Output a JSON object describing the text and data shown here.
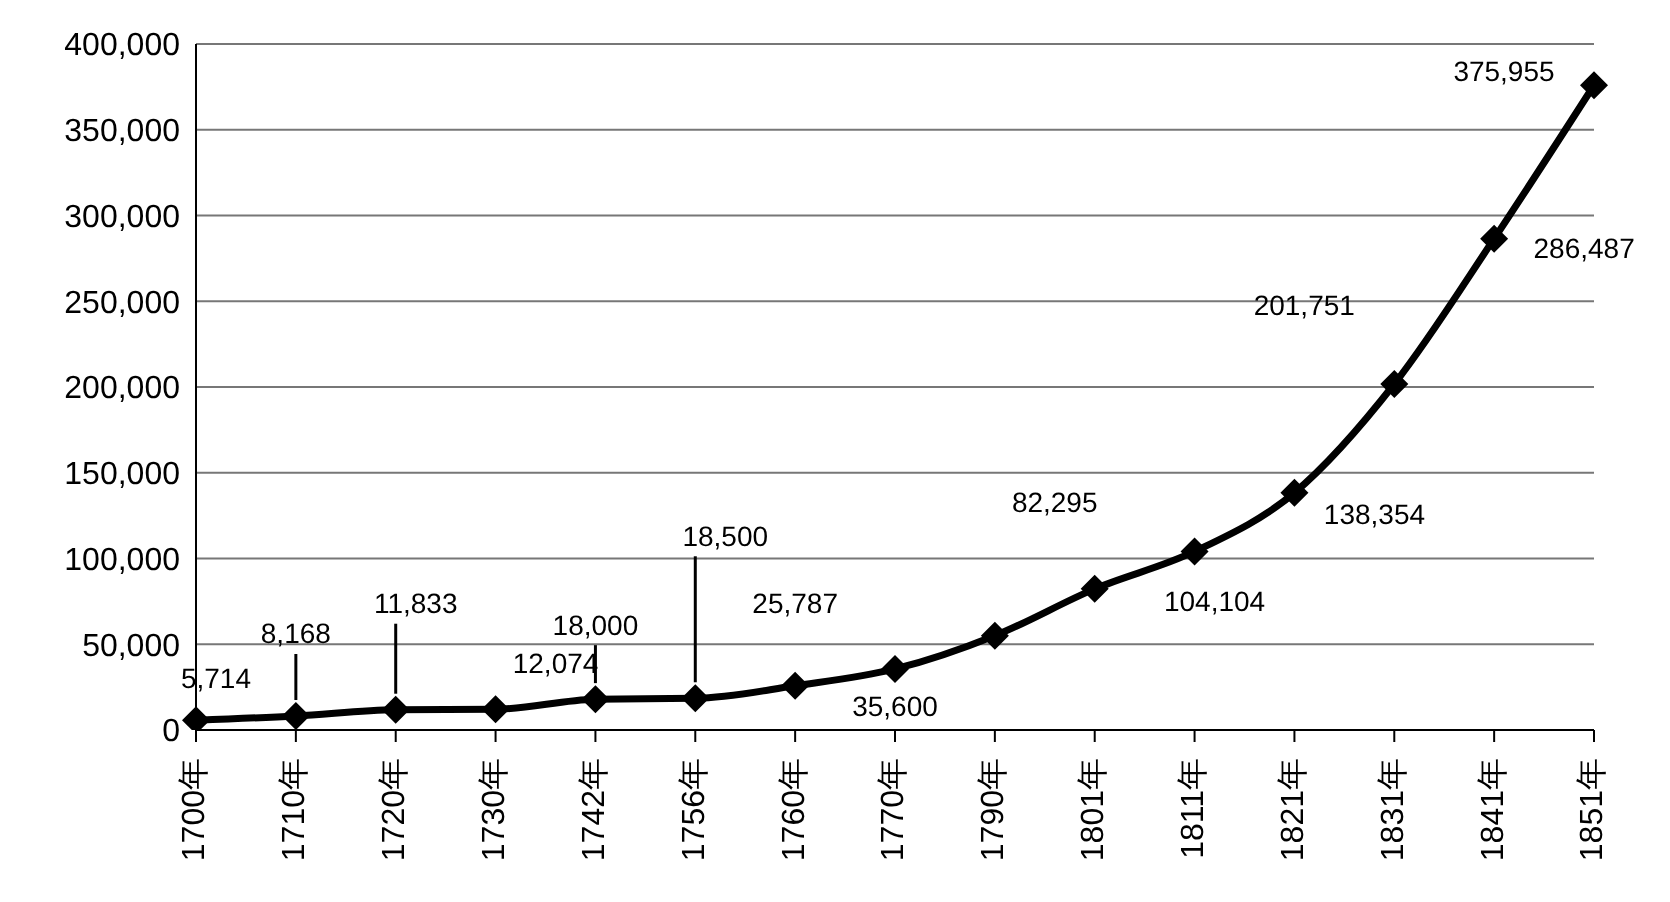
{
  "chart_data": {
    "type": "line",
    "categories": [
      "1700年",
      "1710年",
      "1720年",
      "1730年",
      "1742年",
      "1756年",
      "1760年",
      "1770年",
      "1790年",
      "1801年",
      "1811年",
      "1821年",
      "1831年",
      "1841年",
      "1851年"
    ],
    "series": [
      {
        "color": "#000000",
        "values": [
          5714,
          8168,
          11833,
          12074,
          18000,
          18500,
          25787,
          35600,
          55000,
          82295,
          104104,
          138354,
          201751,
          286487,
          375955
        ],
        "value_labels": [
          "5,714",
          "8,168",
          "11,833",
          "12,074",
          "18,000",
          "18,500",
          "25,787",
          "35,600",
          null,
          "82,295",
          "104,104",
          "138,354",
          "201,751",
          "286,487",
          "375,955"
        ]
      }
    ],
    "ylim": [
      0,
      400000
    ],
    "yticks": [
      0,
      {
        "value": 50000,
        "label": "50,000"
      },
      {
        "value": 100000,
        "label": "100,000"
      },
      {
        "value": 150000,
        "label": "150,000"
      },
      {
        "value": 200000,
        "label": "200,000"
      },
      {
        "value": 250000,
        "label": "250,000"
      },
      {
        "value": 300000,
        "label": "300,000"
      },
      {
        "value": 350000,
        "label": "350,000"
      },
      {
        "value": 400000,
        "label": "400,000"
      }
    ],
    "grid": "y",
    "marker": "diamond",
    "line_style": "solid",
    "legend": false
  }
}
